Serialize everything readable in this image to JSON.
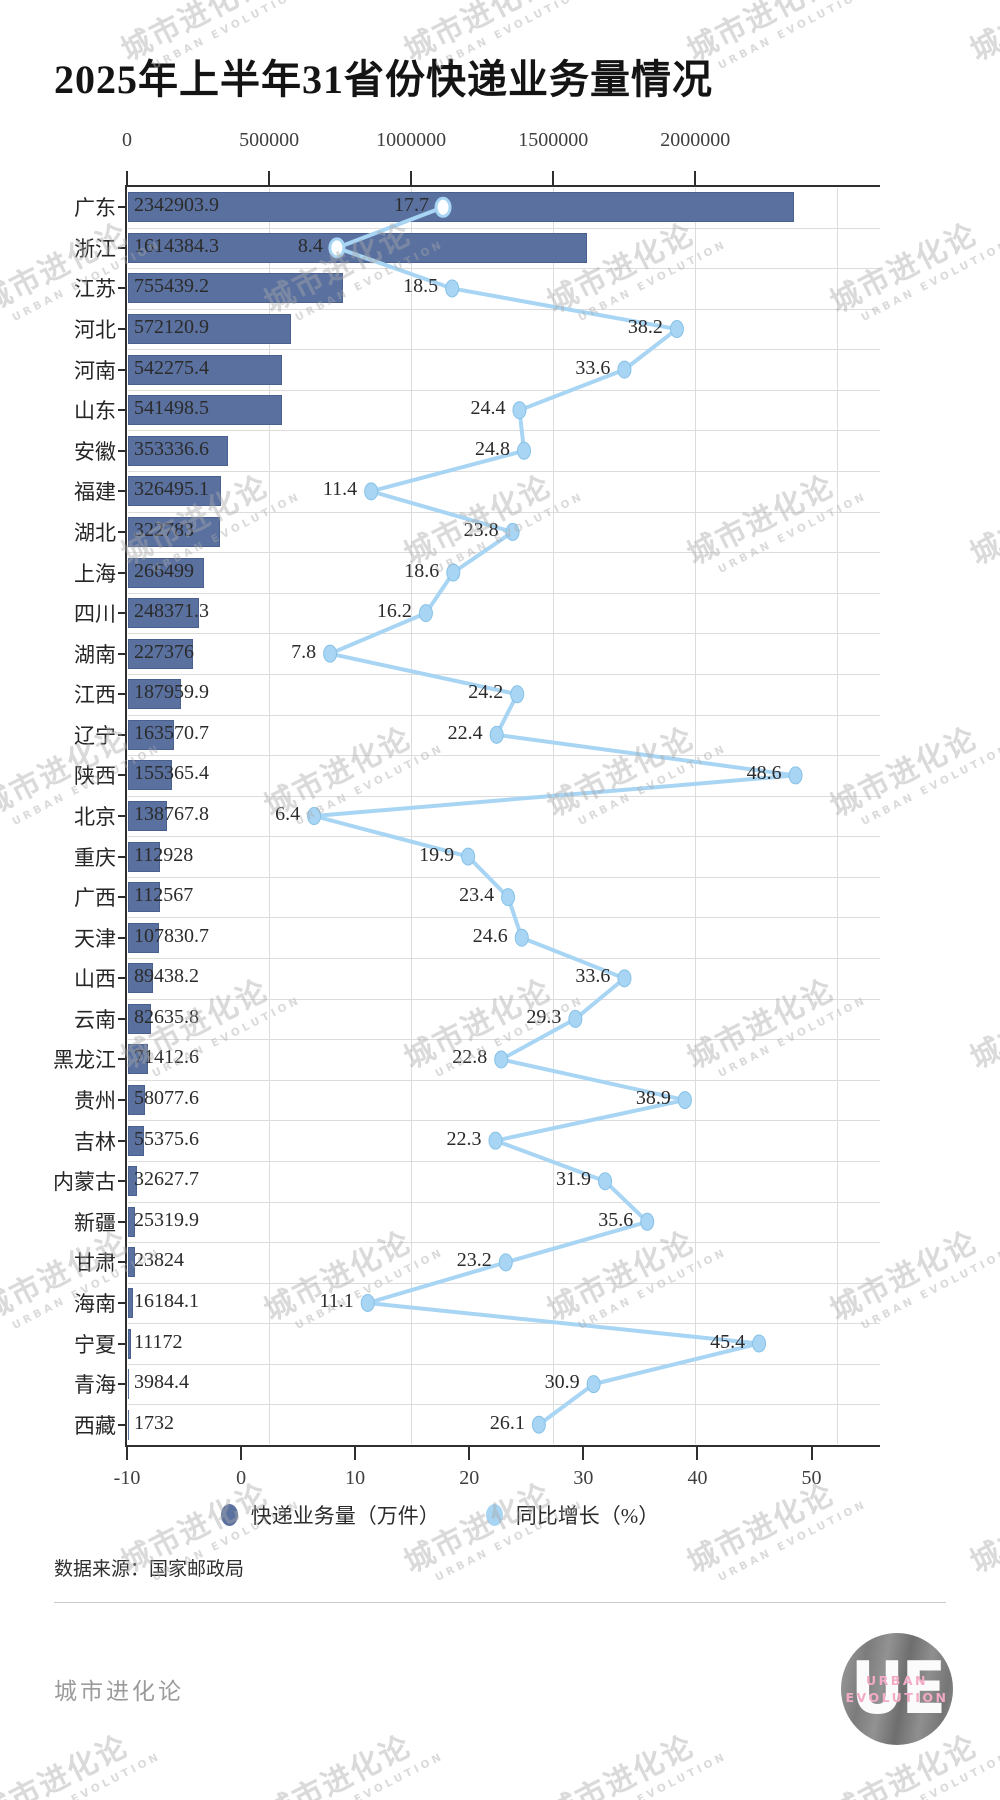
{
  "title": "2025年上半年31省份快递业务量情况",
  "source": "数据来源：国家邮政局",
  "legend": {
    "items": [
      {
        "label": "快递业务量（万件）",
        "color": "#5a71a0"
      },
      {
        "label": "同比增长（%）",
        "color": "#a8d5f3"
      }
    ]
  },
  "footer": {
    "brand": "城市进化论",
    "logo_text": "UE",
    "logo_caption_line1": "URBAN",
    "logo_caption_line2": "EVOLUTION"
  },
  "watermark": {
    "cn": "城市进化论",
    "en": "URBAN EVOLUTION"
  },
  "colors": {
    "bar": "#5a71a0",
    "bar_border": "#4a6190",
    "line": "#a8d5f3",
    "dot_edge": "#86c2e8",
    "grid": "#dcdcdc",
    "axis": "#2f2f2f"
  },
  "chart_data": {
    "type": "bar+line",
    "title": "2025年上半年31省份快递业务量情况",
    "legend_position": "bottom",
    "grid": true,
    "bar_axis": {
      "position": "top",
      "ticks": [
        0,
        500000,
        1000000,
        1500000,
        2000000
      ],
      "max": 2650000,
      "gridlines": [
        500000,
        1000000,
        1500000,
        2000000,
        2500000
      ],
      "label": "快递业务量（万件）"
    },
    "growth_axis": {
      "position": "bottom",
      "ticks": [
        -10,
        0,
        10,
        20,
        30,
        40,
        50
      ],
      "min": -10,
      "max": 56,
      "label": "同比增长（%）"
    },
    "categories": [
      "广东",
      "浙江",
      "江苏",
      "河北",
      "河南",
      "山东",
      "安徽",
      "福建",
      "湖北",
      "上海",
      "四川",
      "湖南",
      "江西",
      "辽宁",
      "陕西",
      "北京",
      "重庆",
      "广西",
      "天津",
      "山西",
      "云南",
      "黑龙江",
      "贵州",
      "吉林",
      "内蒙古",
      "新疆",
      "甘肃",
      "海南",
      "宁夏",
      "青海",
      "西藏"
    ],
    "series": [
      {
        "name": "快递业务量（万件）",
        "type": "bar",
        "color": "#5a71a0",
        "values": [
          2342903.9,
          1614384.3,
          755439.2,
          572120.9,
          542275.4,
          541498.5,
          353336.6,
          326495.1,
          322783,
          266499,
          248371.3,
          227376,
          187959.9,
          163570.7,
          155365.4,
          138767.8,
          112928,
          112567,
          107830.7,
          89438.2,
          82635.8,
          71412.6,
          58077.6,
          55375.6,
          32627.7,
          25319.9,
          23824,
          16184.1,
          11172,
          3984.4,
          1732
        ]
      },
      {
        "name": "同比增长（%）",
        "type": "line",
        "color": "#a8d5f3",
        "values": [
          17.7,
          8.4,
          18.5,
          38.2,
          33.6,
          24.4,
          24.8,
          11.4,
          23.8,
          18.6,
          16.2,
          7.8,
          24.2,
          22.4,
          48.6,
          6.4,
          19.9,
          23.4,
          24.6,
          33.6,
          29.3,
          22.8,
          38.9,
          22.3,
          31.9,
          35.6,
          23.2,
          11.1,
          45.4,
          30.9,
          26.1
        ]
      }
    ]
  }
}
